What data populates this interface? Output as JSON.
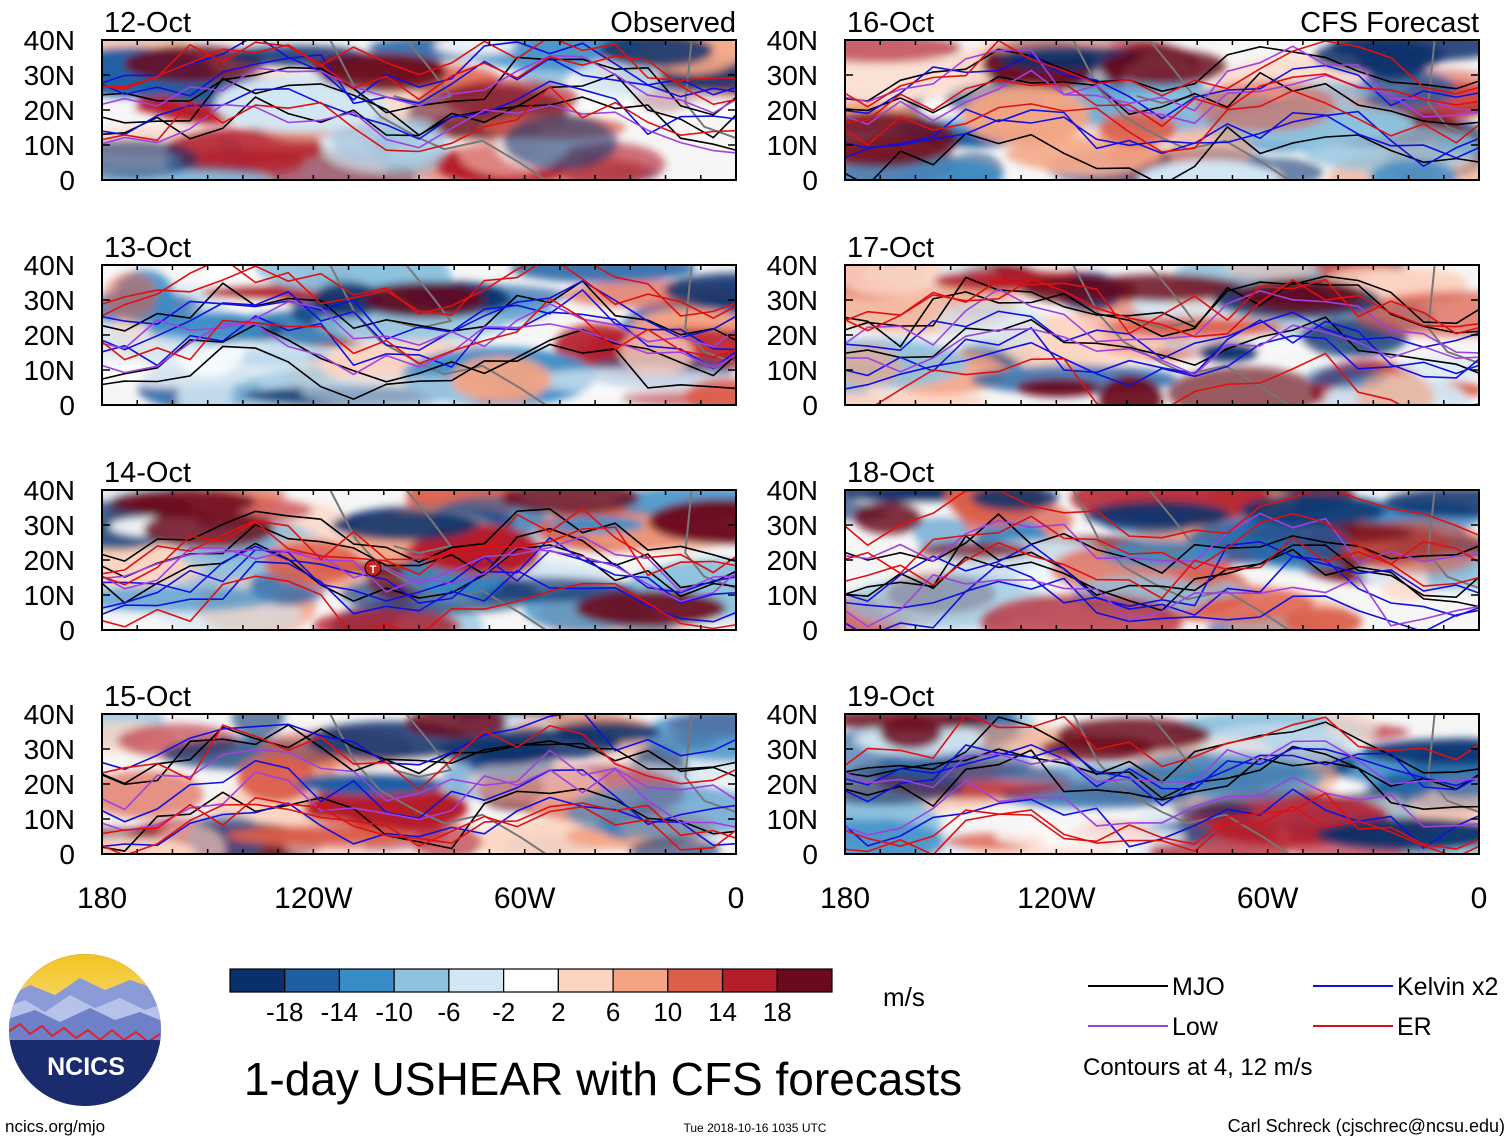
{
  "chart_data": {
    "type": "heatmap",
    "title": "1-day USHEAR with CFS forecasts",
    "units": "m/s",
    "panel_headers": {
      "left": "Observed",
      "right": "CFS Forecast"
    },
    "x_ticks": [
      "180",
      "120W",
      "60W",
      "0"
    ],
    "y_ticks": [
      "40N",
      "30N",
      "20N",
      "10N",
      "0"
    ],
    "x_range_deg_east": [
      -180,
      0
    ],
    "y_range_deg_north": [
      0,
      40
    ],
    "colorbar": {
      "levels": [
        "-18",
        "-14",
        "-10",
        "-6",
        "-2",
        "2",
        "6",
        "10",
        "14",
        "18"
      ],
      "colors": [
        "#08306b",
        "#1d5fa3",
        "#3a8cc6",
        "#8ec2df",
        "#d3e6f3",
        "#ffffff",
        "#fdd4c2",
        "#f3a483",
        "#dc5f4b",
        "#b51d2b",
        "#6b0a1d"
      ]
    },
    "contour_note": "Contours at 4, 12 m/s",
    "legend": [
      {
        "label": "MJO",
        "color": "#000000"
      },
      {
        "label": "Kelvin x2",
        "color": "#1010e0"
      },
      {
        "label": "Low",
        "color": "#a040e0"
      },
      {
        "label": "ER",
        "color": "#e01010"
      }
    ],
    "panels": [
      {
        "date": "12-Oct",
        "source": "Observed"
      },
      {
        "date": "13-Oct",
        "source": "Observed"
      },
      {
        "date": "14-Oct",
        "source": "Observed"
      },
      {
        "date": "15-Oct",
        "source": "Observed"
      },
      {
        "date": "16-Oct",
        "source": "CFS Forecast"
      },
      {
        "date": "17-Oct",
        "source": "CFS Forecast"
      },
      {
        "date": "18-Oct",
        "source": "CFS Forecast"
      },
      {
        "date": "19-Oct",
        "source": "CFS Forecast"
      }
    ]
  },
  "logo": {
    "text": "NCICS"
  },
  "footer": {
    "website": "ncics.org/mjo",
    "timestamp": "Tue 2018-10-16 1035 UTC",
    "author": "Carl Schreck (cjschrec@ncsu.edu)"
  }
}
